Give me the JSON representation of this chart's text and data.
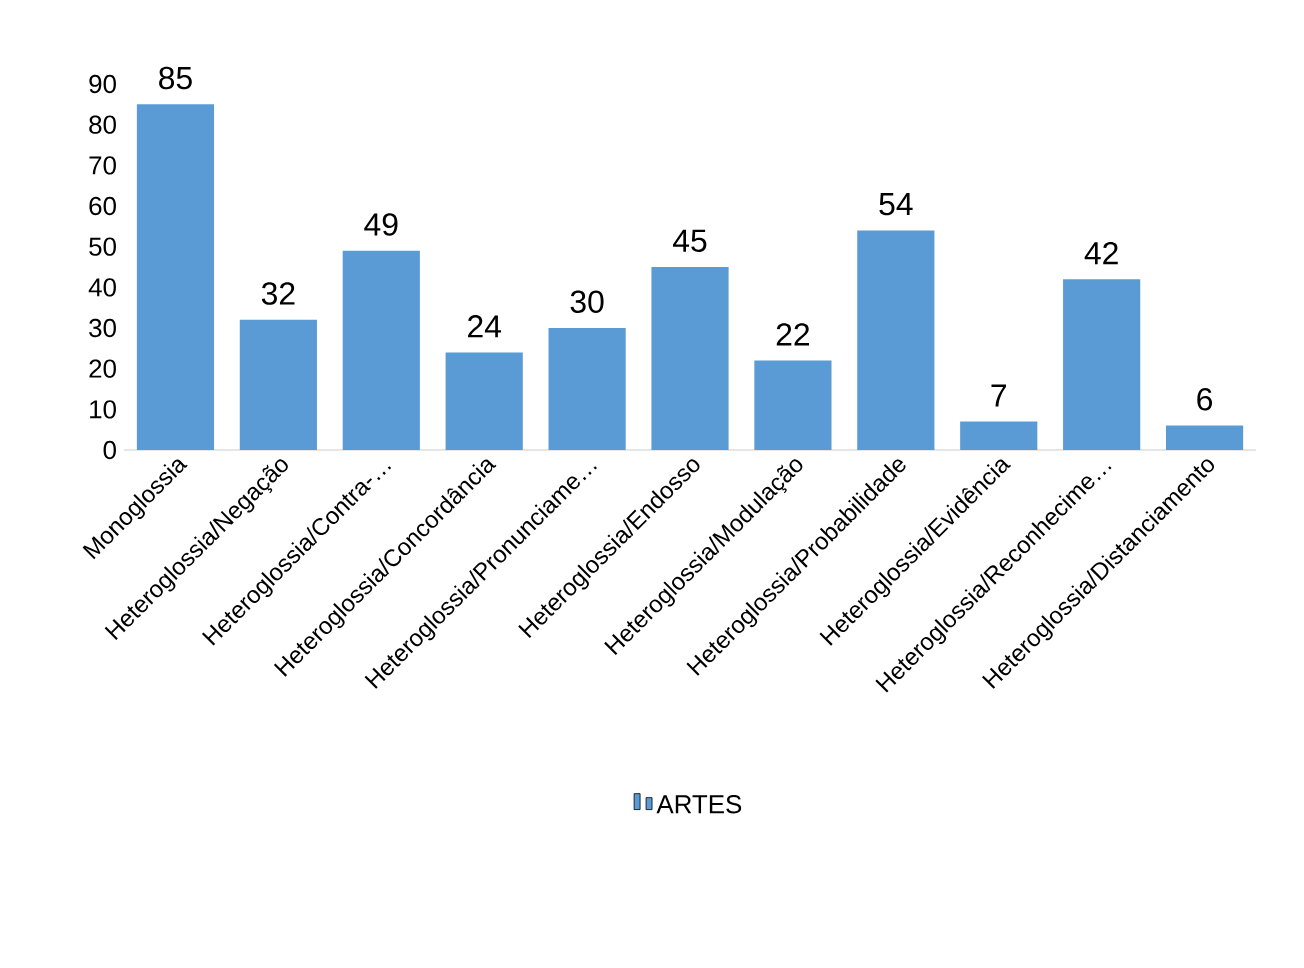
{
  "chart_data": {
    "type": "bar",
    "categories": [
      "Monoglossia",
      "Heteroglossia/Negação",
      "Heteroglossia/Contra-…",
      "Heteroglossia/Concordância",
      "Heteroglossia/Pronunciame…",
      "Heteroglossia/Endosso",
      "Heteroglossia/Modulação",
      "Heteroglossia/Probabilidade",
      "Heteroglossia/Evidência",
      "Heteroglossia/Reconhecime…",
      "Heteroglossia/Distanciamento"
    ],
    "series": [
      {
        "name": "ARTES",
        "color": "#5b9bd5",
        "values": [
          85,
          32,
          49,
          24,
          30,
          45,
          22,
          54,
          7,
          42,
          6
        ]
      }
    ],
    "ylim": [
      0,
      90
    ],
    "yticks": [
      0,
      10,
      20,
      30,
      40,
      50,
      60,
      70,
      80,
      90
    ],
    "data_labels": true,
    "legend": "bottom",
    "grid": false
  }
}
